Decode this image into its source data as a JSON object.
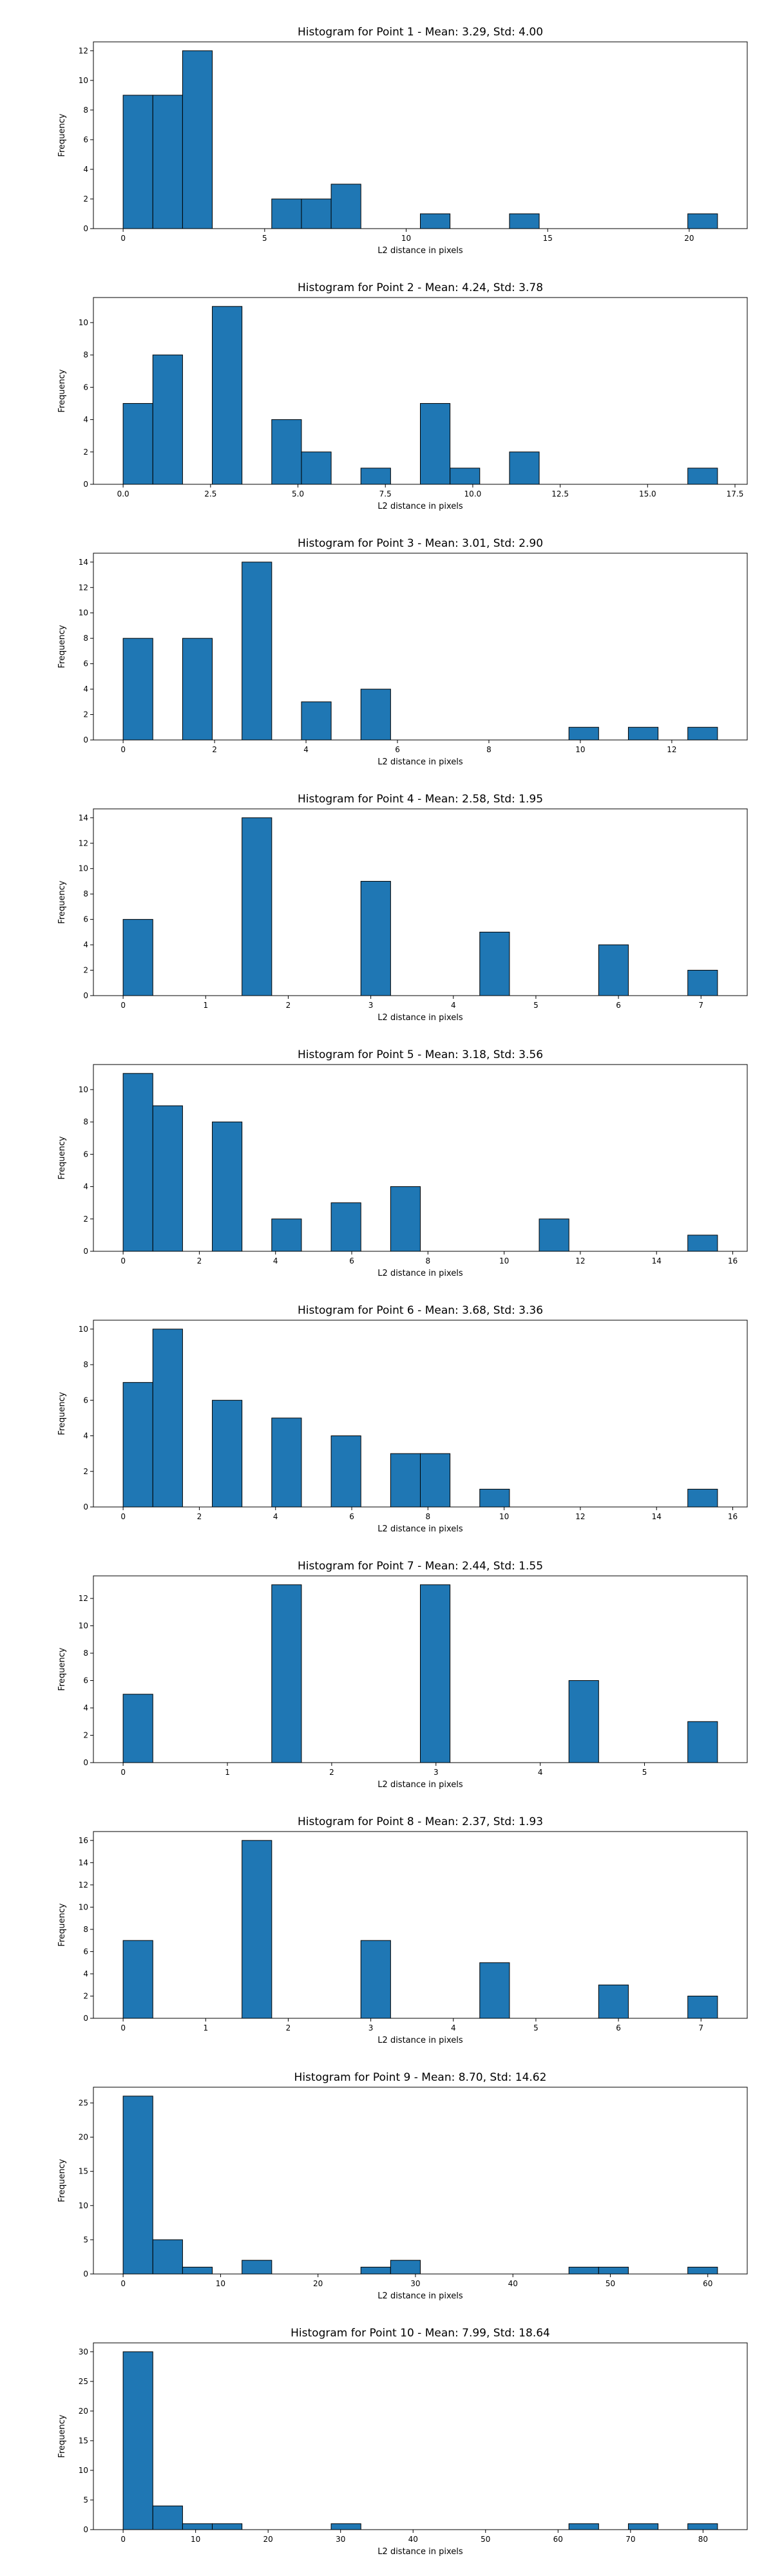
{
  "chart_data": [
    {
      "type": "bar",
      "title": "Histogram for Point 1 - Mean: 3.29, Std: 4.00",
      "xlabel": "L2 distance in pixels",
      "ylabel": "Frequency",
      "bin_edges": [
        0,
        1.05,
        2.1,
        3.15,
        4.2,
        5.25,
        6.3,
        7.35,
        8.4,
        9.45,
        10.5,
        11.55,
        12.6,
        13.65,
        14.7,
        15.75,
        16.8,
        17.85,
        18.9,
        19.95,
        21.0
      ],
      "counts": [
        9,
        9,
        12,
        0,
        0,
        2,
        2,
        3,
        0,
        0,
        1,
        0,
        0,
        1,
        0,
        0,
        0,
        0,
        0,
        1
      ],
      "xlim": [
        -1.05,
        22.05
      ],
      "ylim": [
        0,
        12.6
      ],
      "xticks": [
        0,
        5,
        10,
        15,
        20
      ],
      "xtick_labels": [
        "0",
        "5",
        "10",
        "15",
        "20"
      ],
      "yticks": [
        0,
        2,
        4,
        6,
        8,
        10,
        12
      ],
      "ytick_labels": [
        "0",
        "2",
        "4",
        "6",
        "8",
        "10",
        "12"
      ],
      "color": "#1f77b4",
      "edgecolor": "#000000"
    },
    {
      "type": "bar",
      "title": "Histogram for Point 2 - Mean: 4.24, Std: 3.78",
      "xlabel": "L2 distance in pixels",
      "ylabel": "Frequency",
      "bin_edges": [
        0,
        0.85,
        1.7,
        2.55,
        3.4,
        4.25,
        5.1,
        5.95,
        6.8,
        7.65,
        8.5,
        9.35,
        10.2,
        11.05,
        11.9,
        12.75,
        13.6,
        14.45,
        15.3,
        16.15,
        17.0
      ],
      "counts": [
        5,
        8,
        0,
        11,
        0,
        4,
        2,
        0,
        1,
        0,
        5,
        1,
        0,
        2,
        0,
        0,
        0,
        0,
        0,
        1
      ],
      "xlim": [
        -0.85,
        17.85
      ],
      "ylim": [
        0,
        11.55
      ],
      "xticks": [
        0,
        2.5,
        5,
        7.5,
        10,
        12.5,
        15,
        17.5
      ],
      "xtick_labels": [
        "0.0",
        "2.5",
        "5.0",
        "7.5",
        "10.0",
        "12.5",
        "15.0",
        "17.5"
      ],
      "yticks": [
        0,
        2,
        4,
        6,
        8,
        10
      ],
      "ytick_labels": [
        "0",
        "2",
        "4",
        "6",
        "8",
        "10"
      ],
      "color": "#1f77b4",
      "edgecolor": "#000000"
    },
    {
      "type": "bar",
      "title": "Histogram for Point 3 - Mean: 3.01, Std: 2.90",
      "xlabel": "L2 distance in pixels",
      "ylabel": "Frequency",
      "bin_edges": [
        0,
        0.65,
        1.3,
        1.95,
        2.6,
        3.25,
        3.9,
        4.55,
        5.2,
        5.85,
        6.5,
        7.15,
        7.8,
        8.45,
        9.1,
        9.75,
        10.4,
        11.05,
        11.7,
        12.35,
        13.0
      ],
      "counts": [
        8,
        0,
        8,
        0,
        14,
        0,
        3,
        0,
        4,
        0,
        0,
        0,
        0,
        0,
        0,
        1,
        0,
        1,
        0,
        1
      ],
      "xlim": [
        -0.65,
        13.65
      ],
      "ylim": [
        0,
        14.7
      ],
      "xticks": [
        0,
        2,
        4,
        6,
        8,
        10,
        12
      ],
      "xtick_labels": [
        "0",
        "2",
        "4",
        "6",
        "8",
        "10",
        "12"
      ],
      "yticks": [
        0,
        2,
        4,
        6,
        8,
        10,
        12,
        14
      ],
      "ytick_labels": [
        "0",
        "2",
        "4",
        "6",
        "8",
        "10",
        "12",
        "14"
      ],
      "color": "#1f77b4",
      "edgecolor": "#000000"
    },
    {
      "type": "bar",
      "title": "Histogram for Point 4 - Mean: 2.58, Std: 1.95",
      "xlabel": "L2 distance in pixels",
      "ylabel": "Frequency",
      "bin_edges": [
        0,
        0.36,
        0.72,
        1.08,
        1.44,
        1.8,
        2.16,
        2.52,
        2.88,
        3.24,
        3.6,
        3.96,
        4.32,
        4.68,
        5.04,
        5.4,
        5.76,
        6.12,
        6.48,
        6.84,
        7.2
      ],
      "counts": [
        6,
        0,
        0,
        0,
        14,
        0,
        0,
        0,
        9,
        0,
        0,
        0,
        5,
        0,
        0,
        0,
        4,
        0,
        0,
        2
      ],
      "xlim": [
        -0.36,
        7.56
      ],
      "ylim": [
        0,
        14.7
      ],
      "xticks": [
        0,
        1,
        2,
        3,
        4,
        5,
        6,
        7
      ],
      "xtick_labels": [
        "0",
        "1",
        "2",
        "3",
        "4",
        "5",
        "6",
        "7"
      ],
      "yticks": [
        0,
        2,
        4,
        6,
        8,
        10,
        12,
        14
      ],
      "ytick_labels": [
        "0",
        "2",
        "4",
        "6",
        "8",
        "10",
        "12",
        "14"
      ],
      "color": "#1f77b4",
      "edgecolor": "#000000"
    },
    {
      "type": "bar",
      "title": "Histogram for Point 5 - Mean: 3.18, Std: 3.56",
      "xlabel": "L2 distance in pixels",
      "ylabel": "Frequency",
      "bin_edges": [
        0,
        0.78,
        1.56,
        2.34,
        3.12,
        3.9,
        4.68,
        5.46,
        6.24,
        7.02,
        7.8,
        8.58,
        9.36,
        10.14,
        10.92,
        11.7,
        12.48,
        13.26,
        14.04,
        14.82,
        15.6
      ],
      "counts": [
        11,
        9,
        0,
        8,
        0,
        2,
        0,
        3,
        0,
        4,
        0,
        0,
        0,
        0,
        2,
        0,
        0,
        0,
        0,
        1
      ],
      "xlim": [
        -0.78,
        16.38
      ],
      "ylim": [
        0,
        11.55
      ],
      "xticks": [
        0,
        2,
        4,
        6,
        8,
        10,
        12,
        14,
        16
      ],
      "xtick_labels": [
        "0",
        "2",
        "4",
        "6",
        "8",
        "10",
        "12",
        "14",
        "16"
      ],
      "yticks": [
        0,
        2,
        4,
        6,
        8,
        10
      ],
      "ytick_labels": [
        "0",
        "2",
        "4",
        "6",
        "8",
        "10"
      ],
      "color": "#1f77b4",
      "edgecolor": "#000000"
    },
    {
      "type": "bar",
      "title": "Histogram for Point 6 - Mean: 3.68, Std: 3.36",
      "xlabel": "L2 distance in pixels",
      "ylabel": "Frequency",
      "bin_edges": [
        0,
        0.78,
        1.56,
        2.34,
        3.12,
        3.9,
        4.68,
        5.46,
        6.24,
        7.02,
        7.8,
        8.58,
        9.36,
        10.14,
        10.92,
        11.7,
        12.48,
        13.26,
        14.04,
        14.82,
        15.6
      ],
      "counts": [
        7,
        10,
        0,
        6,
        0,
        5,
        0,
        4,
        0,
        3,
        3,
        0,
        1,
        0,
        0,
        0,
        0,
        0,
        0,
        1
      ],
      "xlim": [
        -0.78,
        16.38
      ],
      "ylim": [
        0,
        10.5
      ],
      "xticks": [
        0,
        2,
        4,
        6,
        8,
        10,
        12,
        14,
        16
      ],
      "xtick_labels": [
        "0",
        "2",
        "4",
        "6",
        "8",
        "10",
        "12",
        "14",
        "16"
      ],
      "yticks": [
        0,
        2,
        4,
        6,
        8,
        10
      ],
      "ytick_labels": [
        "0",
        "2",
        "4",
        "6",
        "8",
        "10"
      ],
      "color": "#1f77b4",
      "edgecolor": "#000000"
    },
    {
      "type": "bar",
      "title": "Histogram for Point 7 - Mean: 2.44, Std: 1.55",
      "xlabel": "L2 distance in pixels",
      "ylabel": "Frequency",
      "bin_edges": [
        0,
        0.285,
        0.57,
        0.855,
        1.14,
        1.425,
        1.71,
        1.995,
        2.28,
        2.565,
        2.85,
        3.135,
        3.42,
        3.705,
        3.99,
        4.275,
        4.56,
        4.845,
        5.13,
        5.415,
        5.7
      ],
      "counts": [
        5,
        0,
        0,
        0,
        0,
        13,
        0,
        0,
        0,
        0,
        13,
        0,
        0,
        0,
        0,
        6,
        0,
        0,
        0,
        3
      ],
      "xlim": [
        -0.285,
        5.985
      ],
      "ylim": [
        0,
        13.65
      ],
      "xticks": [
        0,
        1,
        2,
        3,
        4,
        5
      ],
      "xtick_labels": [
        "0",
        "1",
        "2",
        "3",
        "4",
        "5"
      ],
      "yticks": [
        0,
        2,
        4,
        6,
        8,
        10,
        12
      ],
      "ytick_labels": [
        "0",
        "2",
        "4",
        "6",
        "8",
        "10",
        "12"
      ],
      "color": "#1f77b4",
      "edgecolor": "#000000"
    },
    {
      "type": "bar",
      "title": "Histogram for Point 8 - Mean: 2.37, Std: 1.93",
      "xlabel": "L2 distance in pixels",
      "ylabel": "Frequency",
      "bin_edges": [
        0,
        0.36,
        0.72,
        1.08,
        1.44,
        1.8,
        2.16,
        2.52,
        2.88,
        3.24,
        3.6,
        3.96,
        4.32,
        4.68,
        5.04,
        5.4,
        5.76,
        6.12,
        6.48,
        6.84,
        7.2
      ],
      "counts": [
        7,
        0,
        0,
        0,
        16,
        0,
        0,
        0,
        7,
        0,
        0,
        0,
        5,
        0,
        0,
        0,
        3,
        0,
        0,
        2
      ],
      "xlim": [
        -0.36,
        7.56
      ],
      "ylim": [
        0,
        16.8
      ],
      "xticks": [
        0,
        1,
        2,
        3,
        4,
        5,
        6,
        7
      ],
      "xtick_labels": [
        "0",
        "1",
        "2",
        "3",
        "4",
        "5",
        "6",
        "7"
      ],
      "yticks": [
        0,
        2,
        4,
        6,
        8,
        10,
        12,
        14,
        16
      ],
      "ytick_labels": [
        "0",
        "2",
        "4",
        "6",
        "8",
        "10",
        "12",
        "14",
        "16"
      ],
      "color": "#1f77b4",
      "edgecolor": "#000000"
    },
    {
      "type": "bar",
      "title": "Histogram for Point 9 - Mean: 8.70, Std: 14.62",
      "xlabel": "L2 distance in pixels",
      "ylabel": "Frequency",
      "bin_edges": [
        0,
        3.05,
        6.1,
        9.15,
        12.2,
        15.25,
        18.3,
        21.35,
        24.4,
        27.45,
        30.5,
        33.55,
        36.6,
        39.65,
        42.7,
        45.75,
        48.8,
        51.85,
        54.9,
        57.95,
        61.0
      ],
      "counts": [
        26,
        5,
        1,
        0,
        2,
        0,
        0,
        0,
        1,
        2,
        0,
        0,
        0,
        0,
        0,
        1,
        1,
        0,
        0,
        1
      ],
      "xlim": [
        -3.05,
        64.05
      ],
      "ylim": [
        0,
        27.3
      ],
      "xticks": [
        0,
        10,
        20,
        30,
        40,
        50,
        60
      ],
      "xtick_labels": [
        "0",
        "10",
        "20",
        "30",
        "40",
        "50",
        "60"
      ],
      "yticks": [
        0,
        5,
        10,
        15,
        20,
        25
      ],
      "ytick_labels": [
        "0",
        "5",
        "10",
        "15",
        "20",
        "25"
      ],
      "color": "#1f77b4",
      "edgecolor": "#000000"
    },
    {
      "type": "bar",
      "title": "Histogram for Point 10 - Mean: 7.99, Std: 18.64",
      "xlabel": "L2 distance in pixels",
      "ylabel": "Frequency",
      "bin_edges": [
        0,
        4.1,
        8.2,
        12.3,
        16.4,
        20.5,
        24.6,
        28.7,
        32.8,
        36.9,
        41.0,
        45.1,
        49.2,
        53.3,
        57.4,
        61.5,
        65.6,
        69.7,
        73.8,
        77.9,
        82.0
      ],
      "counts": [
        30,
        4,
        1,
        1,
        0,
        0,
        0,
        1,
        0,
        0,
        0,
        0,
        0,
        0,
        0,
        1,
        0,
        1,
        0,
        1
      ],
      "xlim": [
        -4.1,
        86.1
      ],
      "ylim": [
        0,
        31.5
      ],
      "xticks": [
        0,
        10,
        20,
        30,
        40,
        50,
        60,
        70,
        80
      ],
      "xtick_labels": [
        "0",
        "10",
        "20",
        "30",
        "40",
        "50",
        "60",
        "70",
        "80"
      ],
      "yticks": [
        0,
        5,
        10,
        15,
        20,
        25,
        30
      ],
      "ytick_labels": [
        "0",
        "5",
        "10",
        "15",
        "20",
        "25",
        "30"
      ],
      "color": "#1f77b4",
      "edgecolor": "#000000"
    }
  ]
}
